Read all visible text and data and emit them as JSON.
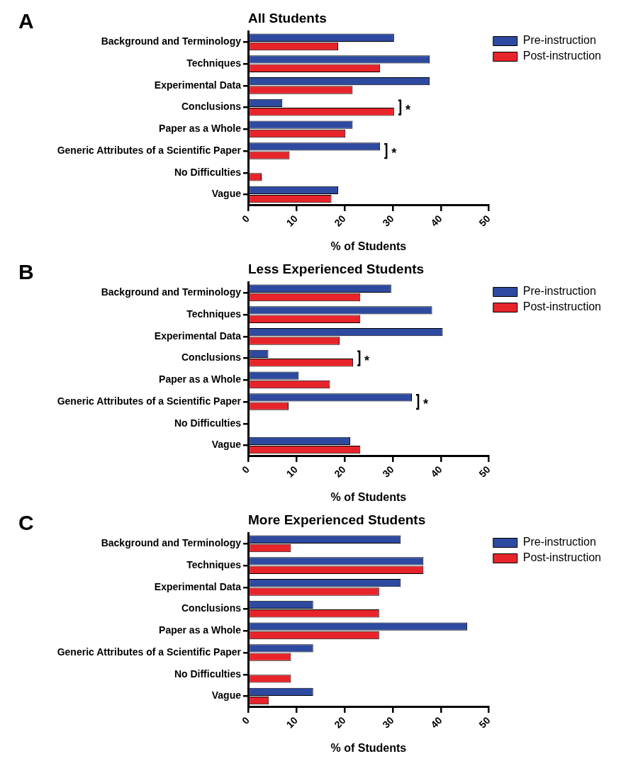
{
  "chart_data": [
    {
      "type": "bar",
      "orientation": "horizontal",
      "title": "All Students",
      "xlabel": "% of Students",
      "categories": [
        "Background and Terminology",
        "Techniques",
        "Experimental Data",
        "Conclusions",
        "Paper as a Whole",
        "Generic Attributes of a Scientific Paper",
        "No Difficulties",
        "Vague"
      ],
      "series": [
        {
          "name": "Pre-instruction",
          "color": "#2e4aa0",
          "values": [
            30.3,
            37.7,
            37.7,
            7.1,
            21.7,
            27.4,
            0,
            18.7
          ]
        },
        {
          "name": "Post-instruction",
          "color": "#e8242b",
          "values": [
            18.7,
            27.4,
            21.7,
            30.3,
            20.2,
            8.6,
            2.8,
            17.3
          ]
        }
      ],
      "xlim": [
        0,
        50
      ],
      "xticks": [
        0,
        10,
        20,
        30,
        40,
        50
      ],
      "grid": false,
      "legend": "right",
      "annotations": [
        "A",
        {
          "text": "*",
          "x": 30.3,
          "y": "Conclusions"
        },
        {
          "text": "*",
          "x": 27.4,
          "y": "Generic Attributes of a Scientific Paper"
        }
      ]
    },
    {
      "type": "bar",
      "orientation": "horizontal",
      "title": "Less Experienced Students",
      "xlabel": "% of Students",
      "categories": [
        "Background and Terminology",
        "Techniques",
        "Experimental Data",
        "Conclusions",
        "Paper as a Whole",
        "Generic Attributes of a Scientific Paper",
        "No Difficulties",
        "Vague"
      ],
      "series": [
        {
          "name": "Pre-instruction",
          "color": "#2e4aa0",
          "values": [
            29.7,
            38.2,
            40.4,
            4.2,
            10.5,
            34.0,
            0,
            21.2
          ]
        },
        {
          "name": "Post-instruction",
          "color": "#e8242b",
          "values": [
            23.3,
            23.3,
            19.0,
            21.8,
            17.0,
            8.4,
            0,
            23.3
          ]
        }
      ],
      "xlim": [
        0,
        50
      ],
      "xticks": [
        0,
        10,
        20,
        30,
        40,
        50
      ],
      "grid": false,
      "legend": "right",
      "annotations": [
        "B",
        {
          "text": "*",
          "x": 21.8,
          "y": "Conclusions"
        },
        {
          "text": "*",
          "x": 34.0,
          "y": "Generic Attributes of a Scientific Paper"
        }
      ]
    },
    {
      "type": "bar",
      "orientation": "horizontal",
      "title": "More Experienced Students",
      "xlabel": "% of Students",
      "categories": [
        "Background and Terminology",
        "Techniques",
        "Experimental Data",
        "Conclusions",
        "Paper as a Whole",
        "Generic Attributes of a Scientific Paper",
        "No Difficulties",
        "Vague"
      ],
      "series": [
        {
          "name": "Pre-instruction",
          "color": "#2e4aa0",
          "values": [
            31.7,
            36.4,
            31.7,
            13.5,
            45.5,
            13.5,
            0,
            13.5
          ]
        },
        {
          "name": "Post-instruction",
          "color": "#e8242b",
          "values": [
            8.9,
            36.4,
            27.2,
            27.2,
            27.2,
            8.9,
            8.9,
            4.3
          ]
        }
      ],
      "xlim": [
        0,
        50
      ],
      "xticks": [
        0,
        10,
        20,
        30,
        40,
        50
      ],
      "grid": false,
      "legend": "right",
      "annotations": [
        "C"
      ]
    }
  ]
}
